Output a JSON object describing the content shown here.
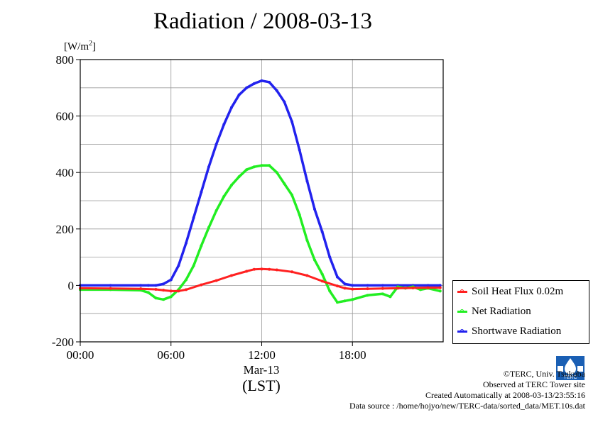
{
  "title": "Radiation / 2008-03-13",
  "credits": {
    "copyright": "©TERC, Univ. Tsukuba",
    "site": "Observed at TERC Tower site",
    "created": "Created Automatically at 2008-03-13/23:55:16",
    "source": "Data source : /home/hojyo/new/TERC-data/sorted_data/MET.10s.dat"
  },
  "logo_text": "TERC",
  "chart_data": {
    "type": "line",
    "title": "Radiation / 2008-03-13",
    "ylabel": "[W/m2]",
    "ylabel_main": "[W/m",
    "ylabel_sup": "2",
    "ylabel_close": "]",
    "xlabel": "(LST)",
    "date_label": "Mar-13",
    "xlim": [
      0,
      24
    ],
    "ylim": [
      -200,
      800
    ],
    "x_ticks": [
      0,
      6,
      12,
      18
    ],
    "x_tick_labels": [
      "00:00",
      "06:00",
      "12:00",
      "18:00"
    ],
    "y_ticks": [
      -200,
      0,
      200,
      400,
      600,
      800
    ],
    "y_tick_labels": [
      "-200",
      "0",
      "200",
      "400",
      "600",
      "800"
    ],
    "grid": true,
    "legend_position": "right",
    "series": [
      {
        "name": "Soil Heat Flux 0.02m",
        "color": "#ff2020",
        "x": [
          0,
          2,
          4,
          5,
          5.5,
          6,
          6.5,
          7,
          8,
          9,
          10,
          11,
          11.5,
          12,
          12.5,
          13,
          14,
          15,
          16,
          17,
          17.5,
          18,
          19,
          20,
          21,
          22,
          23,
          23.8
        ],
        "y": [
          -10,
          -11,
          -12,
          -14,
          -17,
          -20,
          -20,
          -15,
          2,
          17,
          35,
          50,
          57,
          58,
          57,
          55,
          48,
          35,
          15,
          -2,
          -10,
          -13,
          -12,
          -11,
          -10,
          -9,
          -8,
          -8
        ]
      },
      {
        "name": "Net Radiation",
        "color": "#22ee22",
        "x": [
          0,
          2,
          4,
          4.5,
          5,
          5.5,
          6,
          6.5,
          7,
          7.5,
          8,
          8.5,
          9,
          9.5,
          10,
          10.5,
          11,
          11.5,
          12,
          12.5,
          13,
          13.5,
          14,
          14.5,
          15,
          15.5,
          16,
          16.5,
          17,
          17.5,
          18,
          19,
          20,
          20.5,
          21,
          21.5,
          22,
          22.5,
          23,
          23.8
        ],
        "y": [
          -15,
          -15,
          -17,
          -25,
          -45,
          -50,
          -40,
          -15,
          20,
          70,
          140,
          205,
          265,
          315,
          355,
          385,
          410,
          420,
          425,
          425,
          400,
          360,
          320,
          250,
          160,
          90,
          40,
          -20,
          -60,
          -55,
          -50,
          -35,
          -30,
          -40,
          -5,
          -10,
          -5,
          -15,
          -10,
          -20
        ]
      },
      {
        "name": "Shortwave Radiation",
        "color": "#2222ee",
        "x": [
          0,
          2,
          4,
          4.5,
          5,
          5.5,
          6,
          6.5,
          7,
          7.5,
          8,
          8.5,
          9,
          9.5,
          10,
          10.5,
          11,
          11.5,
          12,
          12.5,
          13,
          13.5,
          14,
          14.5,
          15,
          15.5,
          16,
          16.5,
          17,
          17.5,
          18,
          19,
          20,
          21,
          22,
          23,
          23.8
        ],
        "y": [
          0,
          0,
          0,
          0,
          0,
          5,
          20,
          70,
          150,
          240,
          330,
          420,
          500,
          570,
          630,
          675,
          700,
          715,
          725,
          720,
          690,
          650,
          580,
          480,
          370,
          270,
          190,
          100,
          30,
          5,
          0,
          0,
          0,
          0,
          0,
          0,
          0
        ]
      }
    ]
  }
}
